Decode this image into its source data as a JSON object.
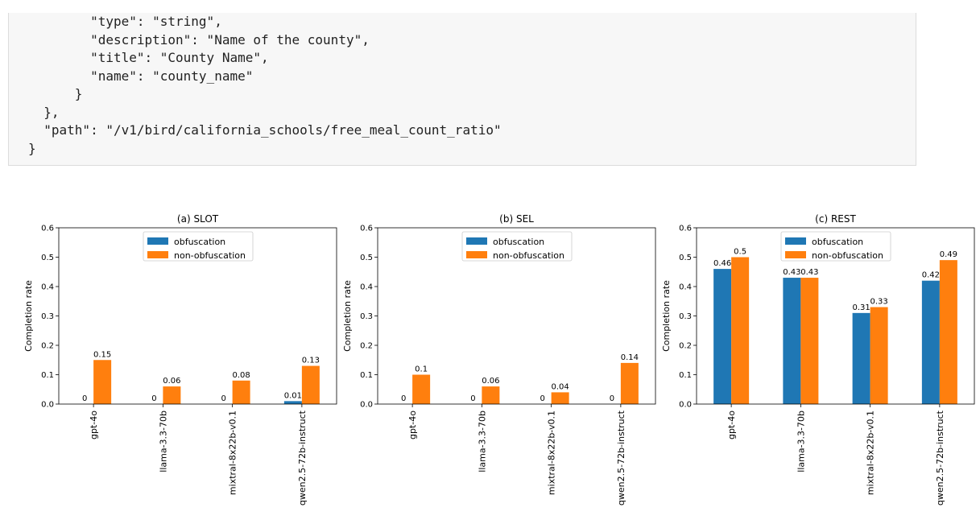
{
  "code": {
    "lines": [
      "        \"type\": \"string\",",
      "        \"description\": \"Name of the county\",",
      "        \"title\": \"County Name\",",
      "        \"name\": \"county_name\"",
      "      }",
      "  },",
      "  \"path\": \"/v1/bird/california_schools/free_meal_count_ratio\"",
      "}"
    ]
  },
  "colors": {
    "obfuscation": "#1f77b4",
    "non_obfuscation": "#ff7f0e"
  },
  "chart_data": [
    {
      "type": "bar",
      "title": "(a) SLOT",
      "ylabel": "Completion rate",
      "xlabel": "",
      "ylim": [
        0,
        0.6
      ],
      "yticks": [
        "0.0",
        "0.1",
        "0.2",
        "0.3",
        "0.4",
        "0.5",
        "0.6"
      ],
      "categories": [
        "gpt-4o",
        "llama-3.3-70b",
        "mixtral-8x22b-v0.1",
        "qwen2.5-72b-instruct"
      ],
      "legend": "upper-center",
      "series": [
        {
          "name": "obfuscation",
          "values": [
            0,
            0,
            0,
            0.01
          ],
          "labels": [
            "0",
            "0",
            "0",
            "0.01"
          ]
        },
        {
          "name": "non-obfuscation",
          "values": [
            0.15,
            0.06,
            0.08,
            0.13
          ],
          "labels": [
            "0.15",
            "0.06",
            "0.08",
            "0.13"
          ]
        }
      ]
    },
    {
      "type": "bar",
      "title": "(b) SEL",
      "ylabel": "Completion rate",
      "xlabel": "",
      "ylim": [
        0,
        0.6
      ],
      "yticks": [
        "0.0",
        "0.1",
        "0.2",
        "0.3",
        "0.4",
        "0.5",
        "0.6"
      ],
      "categories": [
        "gpt-4o",
        "llama-3.3-70b",
        "mixtral-8x22b-v0.1",
        "qwen2.5-72b-instruct"
      ],
      "legend": "upper-center",
      "series": [
        {
          "name": "obfuscation",
          "values": [
            0,
            0,
            0,
            0
          ],
          "labels": [
            "0",
            "0",
            "0",
            "0"
          ]
        },
        {
          "name": "non-obfuscation",
          "values": [
            0.1,
            0.06,
            0.04,
            0.14
          ],
          "labels": [
            "0.1",
            "0.06",
            "0.04",
            "0.14"
          ]
        }
      ]
    },
    {
      "type": "bar",
      "title": "(c) REST",
      "ylabel": "Completion rate",
      "xlabel": "",
      "ylim": [
        0,
        0.6
      ],
      "yticks": [
        "0.0",
        "0.1",
        "0.2",
        "0.3",
        "0.4",
        "0.5",
        "0.6"
      ],
      "categories": [
        "gpt-4o",
        "llama-3.3-70b",
        "mixtral-8x22b-v0.1",
        "qwen2.5-72b-instruct"
      ],
      "legend": "upper-center",
      "series": [
        {
          "name": "obfuscation",
          "values": [
            0.46,
            0.43,
            0.31,
            0.42
          ],
          "labels": [
            "0.46",
            "0.43",
            "0.31",
            "0.42"
          ]
        },
        {
          "name": "non-obfuscation",
          "values": [
            0.5,
            0.43,
            0.33,
            0.49
          ],
          "labels": [
            "0.5",
            "0.43",
            "0.33",
            "0.49"
          ]
        }
      ]
    }
  ]
}
